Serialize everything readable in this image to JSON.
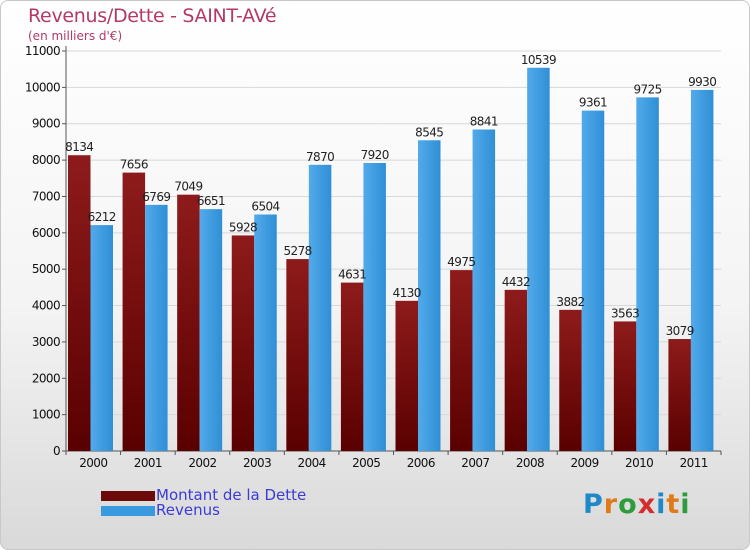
{
  "title": "Revenus/Dette - SAINT-AVé",
  "subtitle": "(en milliers d'€)",
  "colors": {
    "debt": "#6e0a0a",
    "revenue": "#3a9ae0",
    "title": "#b23a67",
    "legend_text": "#3b3bd6"
  },
  "logo": {
    "text": "Proxiti",
    "letters": [
      "P",
      "r",
      "o",
      "x",
      "i",
      "t",
      "i"
    ],
    "letter_colors": [
      "#1e88c8",
      "#e07a18",
      "#2e9c3a",
      "#d42d2d",
      "#1e88c8",
      "#e07a18",
      "#2e9c3a"
    ]
  },
  "chart_data": {
    "type": "bar",
    "categories": [
      "2000",
      "2001",
      "2002",
      "2003",
      "2004",
      "2005",
      "2006",
      "2007",
      "2008",
      "2009",
      "2010",
      "2011"
    ],
    "series": [
      {
        "name": "Montant de la Dette",
        "values": [
          8134,
          7656,
          7049,
          5928,
          5278,
          4631,
          4130,
          4975,
          4432,
          3882,
          3563,
          3079
        ],
        "labels": [
          "8134",
          "7656",
          "7049",
          "5928",
          "5278",
          "4631",
          "4130",
          "4975",
          "4432",
          "3882",
          "3563",
          "3079"
        ]
      },
      {
        "name": "Revenus",
        "values": [
          6212,
          6769,
          6651,
          6504,
          7870,
          7920,
          8545,
          8841,
          10539,
          9361,
          9725,
          9930
        ],
        "labels": [
          "6212",
          "6769",
          "6651",
          "6504",
          "7870",
          "7920",
          "8545",
          "8841",
          "10539",
          "9361",
          "9725",
          "9930"
        ]
      }
    ],
    "y_ticks": [
      0,
      1000,
      2000,
      3000,
      4000,
      5000,
      6000,
      7000,
      8000,
      9000,
      10000,
      11000
    ],
    "ylim": [
      0,
      11000
    ],
    "grid": true,
    "legend_position": "bottom-left"
  }
}
